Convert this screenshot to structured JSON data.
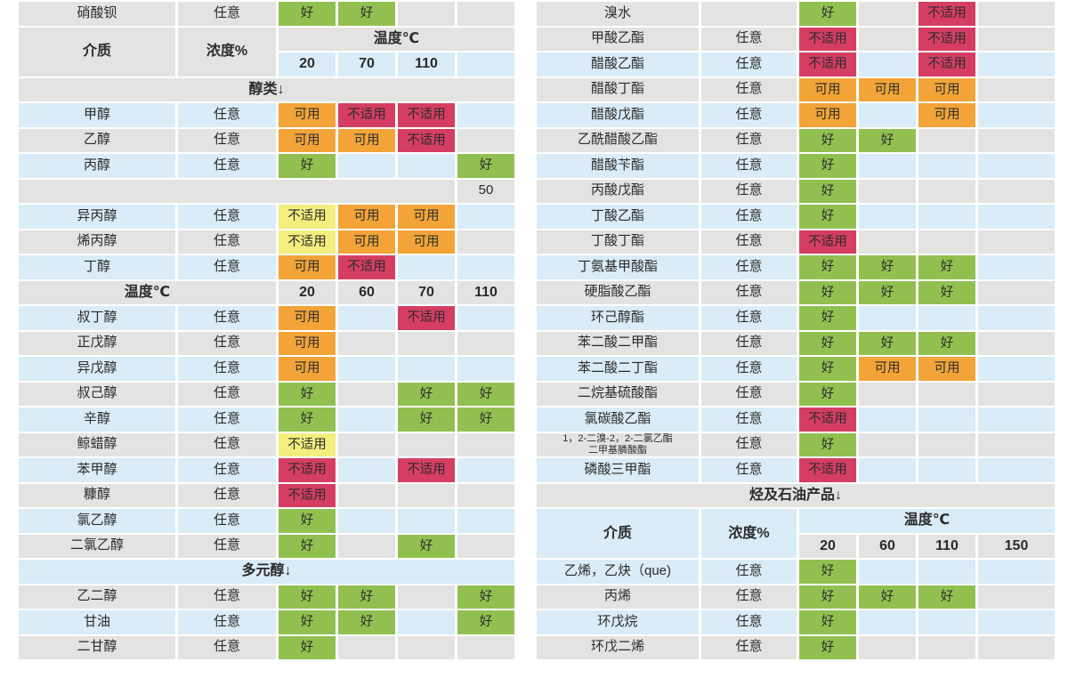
{
  "page": {
    "background": "#ffffff"
  },
  "palette": {
    "good": "#92c050",
    "usable": "#f2a438",
    "unsuitable": "#d53e62",
    "unsuitable_alt": "#f3ee7e",
    "row_gray": "#e3e3e2",
    "row_blue": "#d9ecf7",
    "text": "#2b2b2b"
  },
  "status_labels": {
    "good": "好",
    "usable": "可用",
    "unsuitable": "不适用"
  },
  "tables": [
    {
      "id": "left",
      "rows": [
        {
          "kind": "data",
          "bg": "gray",
          "media": "硝酸钡",
          "conc": "任意",
          "cells": [
            {
              "t": "好",
              "c": "good"
            },
            {
              "t": "好",
              "c": "good"
            },
            null,
            null
          ]
        },
        {
          "kind": "header",
          "bg_main": "gray",
          "bg_sub": "blue",
          "media_label": "介质",
          "conc_label": "浓度%",
          "temp_label": "温度℃",
          "temps": [
            "20",
            "70",
            "110",
            ""
          ]
        },
        {
          "kind": "section",
          "bg": "gray",
          "label": "醇类↓"
        },
        {
          "kind": "data",
          "bg": "blue",
          "media": "甲醇",
          "conc": "任意",
          "cells": [
            {
              "t": "可用",
              "c": "usable"
            },
            {
              "t": "不适用",
              "c": "unsuitable"
            },
            {
              "t": "不适用",
              "c": "unsuitable"
            },
            null
          ]
        },
        {
          "kind": "data",
          "bg": "gray",
          "media": "乙醇",
          "conc": "任意",
          "cells": [
            {
              "t": "可用",
              "c": "usable"
            },
            {
              "t": "可用",
              "c": "usable"
            },
            {
              "t": "不适用",
              "c": "unsuitable"
            },
            null
          ]
        },
        {
          "kind": "data",
          "bg": "blue",
          "media": "丙醇",
          "conc": "任意",
          "cells": [
            {
              "t": "好",
              "c": "good"
            },
            null,
            null,
            {
              "t": "好",
              "c": "good"
            }
          ]
        },
        {
          "kind": "note",
          "bg": "gray",
          "value": "50"
        },
        {
          "kind": "data",
          "bg": "blue",
          "media": "异丙醇",
          "conc": "任意",
          "cells": [
            {
              "t": "不适用",
              "c": "unsuitable_alt"
            },
            {
              "t": "可用",
              "c": "usable"
            },
            {
              "t": "可用",
              "c": "usable"
            },
            null
          ]
        },
        {
          "kind": "data",
          "bg": "gray",
          "media": "烯丙醇",
          "conc": "任意",
          "cells": [
            {
              "t": "不适用",
              "c": "unsuitable_alt"
            },
            {
              "t": "可用",
              "c": "usable"
            },
            {
              "t": "可用",
              "c": "usable"
            },
            null
          ]
        },
        {
          "kind": "data",
          "bg": "blue",
          "media": "丁醇",
          "conc": "任意",
          "cells": [
            {
              "t": "可用",
              "c": "usable"
            },
            {
              "t": "不适用",
              "c": "unsuitable"
            },
            null,
            null
          ]
        },
        {
          "kind": "temp",
          "bg": "gray",
          "label": "温度℃",
          "temps": [
            "20",
            "60",
            "70",
            "110"
          ]
        },
        {
          "kind": "data",
          "bg": "blue",
          "media": "叔丁醇",
          "conc": "任意",
          "cells": [
            {
              "t": "可用",
              "c": "usable"
            },
            null,
            {
              "t": "不适用",
              "c": "unsuitable"
            },
            null
          ]
        },
        {
          "kind": "data",
          "bg": "gray",
          "media": "正戊醇",
          "conc": "任意",
          "cells": [
            {
              "t": "可用",
              "c": "usable"
            },
            null,
            null,
            null
          ]
        },
        {
          "kind": "data",
          "bg": "blue",
          "media": "异戊醇",
          "conc": "任意",
          "cells": [
            {
              "t": "可用",
              "c": "usable"
            },
            null,
            null,
            null
          ]
        },
        {
          "kind": "data",
          "bg": "gray",
          "media": "叔己醇",
          "conc": "任意",
          "cells": [
            {
              "t": "好",
              "c": "good"
            },
            null,
            {
              "t": "好",
              "c": "good"
            },
            {
              "t": "好",
              "c": "good"
            }
          ]
        },
        {
          "kind": "data",
          "bg": "blue",
          "media": "辛醇",
          "conc": "任意",
          "cells": [
            {
              "t": "好",
              "c": "good"
            },
            null,
            {
              "t": "好",
              "c": "good"
            },
            {
              "t": "好",
              "c": "good"
            }
          ]
        },
        {
          "kind": "data",
          "bg": "gray",
          "media": "鲸蜡醇",
          "conc": "任意",
          "cells": [
            {
              "t": "不适用",
              "c": "unsuitable_alt"
            },
            null,
            null,
            null
          ]
        },
        {
          "kind": "data",
          "bg": "blue",
          "media": "苯甲醇",
          "conc": "任意",
          "cells": [
            {
              "t": "不适用",
              "c": "unsuitable"
            },
            null,
            {
              "t": "不适用",
              "c": "unsuitable"
            },
            null
          ]
        },
        {
          "kind": "data",
          "bg": "gray",
          "media": "糠醇",
          "conc": "任意",
          "cells": [
            {
              "t": "不适用",
              "c": "unsuitable"
            },
            null,
            null,
            null
          ]
        },
        {
          "kind": "data",
          "bg": "blue",
          "media": "氯乙醇",
          "conc": "任意",
          "cells": [
            {
              "t": "好",
              "c": "good"
            },
            null,
            null,
            null
          ]
        },
        {
          "kind": "data",
          "bg": "gray",
          "media": "二氯乙醇",
          "conc": "任意",
          "cells": [
            {
              "t": "好",
              "c": "good"
            },
            null,
            {
              "t": "好",
              "c": "good"
            },
            null
          ]
        },
        {
          "kind": "section",
          "bg": "blue",
          "label": "多元醇↓"
        },
        {
          "kind": "data",
          "bg": "gray",
          "media": "乙二醇",
          "conc": "任意",
          "cells": [
            {
              "t": "好",
              "c": "good"
            },
            {
              "t": "好",
              "c": "good"
            },
            null,
            {
              "t": "好",
              "c": "good"
            }
          ]
        },
        {
          "kind": "data",
          "bg": "blue",
          "media": "甘油",
          "conc": "任意",
          "cells": [
            {
              "t": "好",
              "c": "good"
            },
            {
              "t": "好",
              "c": "good"
            },
            null,
            {
              "t": "好",
              "c": "good"
            }
          ]
        },
        {
          "kind": "data",
          "bg": "gray",
          "media": "二甘醇",
          "conc": "任意",
          "cells": [
            {
              "t": "好",
              "c": "good"
            },
            null,
            null,
            null
          ]
        }
      ]
    },
    {
      "id": "right",
      "rows": [
        {
          "kind": "data",
          "bg": "gray",
          "media": "溴水",
          "conc": "",
          "cells": [
            {
              "t": "好",
              "c": "good"
            },
            null,
            {
              "t": "不适用",
              "c": "unsuitable"
            },
            null
          ]
        },
        {
          "kind": "data",
          "bg": "gray",
          "media": "甲酸乙酯",
          "conc": "任意",
          "cells": [
            {
              "t": "不适用",
              "c": "unsuitable"
            },
            null,
            {
              "t": "不适用",
              "c": "unsuitable"
            },
            null
          ]
        },
        {
          "kind": "data",
          "bg": "blue",
          "media": "醋酸乙酯",
          "conc": "任意",
          "cells": [
            {
              "t": "不适用",
              "c": "unsuitable"
            },
            null,
            {
              "t": "不适用",
              "c": "unsuitable"
            },
            null
          ]
        },
        {
          "kind": "data",
          "bg": "gray",
          "media": "醋酸丁酯",
          "conc": "任意",
          "cells": [
            {
              "t": "可用",
              "c": "usable"
            },
            {
              "t": "可用",
              "c": "usable"
            },
            {
              "t": "可用",
              "c": "usable"
            },
            null
          ]
        },
        {
          "kind": "data",
          "bg": "blue",
          "media": "醋酸戊酯",
          "conc": "任意",
          "cells": [
            {
              "t": "可用",
              "c": "usable"
            },
            null,
            {
              "t": "可用",
              "c": "usable"
            },
            null
          ]
        },
        {
          "kind": "data",
          "bg": "gray",
          "media": "乙酰醋酸乙酯",
          "conc": "任意",
          "cells": [
            {
              "t": "好",
              "c": "good"
            },
            {
              "t": "好",
              "c": "good"
            },
            null,
            null
          ]
        },
        {
          "kind": "data",
          "bg": "blue",
          "media": "醋酸苄酯",
          "conc": "任意",
          "cells": [
            {
              "t": "好",
              "c": "good"
            },
            null,
            null,
            null
          ]
        },
        {
          "kind": "data",
          "bg": "gray",
          "media": "丙酸戊酯",
          "conc": "任意",
          "cells": [
            {
              "t": "好",
              "c": "good"
            },
            null,
            null,
            null
          ]
        },
        {
          "kind": "data",
          "bg": "blue",
          "media": "丁酸乙酯",
          "conc": "任意",
          "cells": [
            {
              "t": "好",
              "c": "good"
            },
            null,
            null,
            null
          ]
        },
        {
          "kind": "data",
          "bg": "gray",
          "media": "丁酸丁酯",
          "conc": "任意",
          "cells": [
            {
              "t": "不适用",
              "c": "unsuitable"
            },
            null,
            null,
            null
          ]
        },
        {
          "kind": "data",
          "bg": "blue",
          "media": "丁氨基甲酸酯",
          "conc": "任意",
          "cells": [
            {
              "t": "好",
              "c": "good"
            },
            {
              "t": "好",
              "c": "good"
            },
            {
              "t": "好",
              "c": "good"
            },
            null
          ]
        },
        {
          "kind": "data",
          "bg": "gray",
          "media": "硬脂酸乙酯",
          "conc": "任意",
          "cells": [
            {
              "t": "好",
              "c": "good"
            },
            {
              "t": "好",
              "c": "good"
            },
            {
              "t": "好",
              "c": "good"
            },
            null
          ]
        },
        {
          "kind": "data",
          "bg": "blue",
          "media": "环己醇酯",
          "conc": "任意",
          "cells": [
            {
              "t": "好",
              "c": "good"
            },
            null,
            null,
            null
          ]
        },
        {
          "kind": "data",
          "bg": "gray",
          "media": "苯二酸二甲酯",
          "conc": "任意",
          "cells": [
            {
              "t": "好",
              "c": "good"
            },
            {
              "t": "好",
              "c": "good"
            },
            {
              "t": "好",
              "c": "good"
            },
            null
          ]
        },
        {
          "kind": "data",
          "bg": "blue",
          "media": "苯二酸二丁酯",
          "conc": "任意",
          "cells": [
            {
              "t": "好",
              "c": "good"
            },
            {
              "t": "可用",
              "c": "usable"
            },
            {
              "t": "可用",
              "c": "usable"
            },
            null
          ]
        },
        {
          "kind": "data",
          "bg": "gray",
          "media": "二烷基硫酸酯",
          "conc": "任意",
          "cells": [
            {
              "t": "好",
              "c": "good"
            },
            null,
            null,
            null
          ]
        },
        {
          "kind": "data",
          "bg": "blue",
          "media": "氯碳酸乙酯",
          "conc": "任意",
          "cells": [
            {
              "t": "不适用",
              "c": "unsuitable"
            },
            null,
            null,
            null
          ]
        },
        {
          "kind": "data",
          "bg": "gray",
          "media": "1，2-二溴-2，2-二氯乙酯",
          "media2": "二甲基膦酸酯",
          "small": true,
          "conc": "任意",
          "cells": [
            {
              "t": "好",
              "c": "good"
            },
            null,
            null,
            null
          ]
        },
        {
          "kind": "data",
          "bg": "blue",
          "media": "磷酸三甲酯",
          "conc": "任意",
          "cells": [
            {
              "t": "不适用",
              "c": "unsuitable"
            },
            null,
            null,
            null
          ]
        },
        {
          "kind": "section",
          "bg": "gray",
          "label": "烃及石油产品↓"
        },
        {
          "kind": "header",
          "bg_main": "blue",
          "bg_sub": "gray",
          "media_label": "介质",
          "conc_label": "浓度%",
          "temp_label": "温度℃",
          "temps": [
            "20",
            "60",
            "110",
            "150"
          ]
        },
        {
          "kind": "data",
          "bg": "blue",
          "media": "乙烯，乙炔（que)",
          "conc": "任意",
          "cells": [
            {
              "t": "好",
              "c": "good"
            },
            null,
            null,
            null
          ]
        },
        {
          "kind": "data",
          "bg": "gray",
          "media": "丙烯",
          "conc": "任意",
          "cells": [
            {
              "t": "好",
              "c": "good"
            },
            {
              "t": "好",
              "c": "good"
            },
            {
              "t": "好",
              "c": "good"
            },
            null
          ]
        },
        {
          "kind": "data",
          "bg": "blue",
          "media": "环戊烷",
          "conc": "任意",
          "cells": [
            {
              "t": "好",
              "c": "good"
            },
            null,
            null,
            null
          ]
        },
        {
          "kind": "data",
          "bg": "gray",
          "media": "环戊二烯",
          "conc": "任意",
          "cells": [
            {
              "t": "好",
              "c": "good"
            },
            null,
            null,
            null
          ]
        }
      ]
    }
  ]
}
